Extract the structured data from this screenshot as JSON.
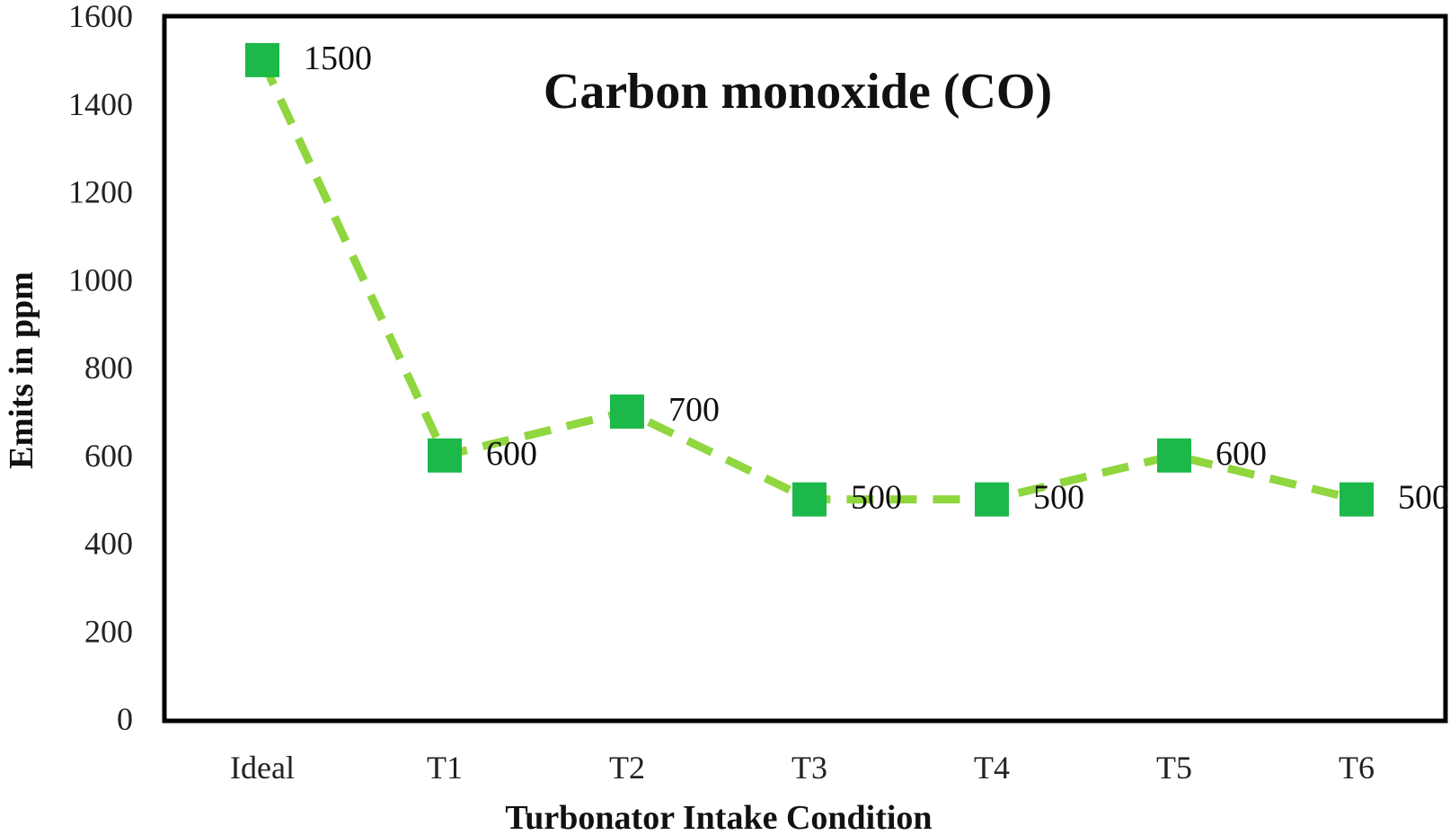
{
  "chart_data": {
    "type": "line",
    "title": "Carbon monoxide (CO)",
    "xlabel": "Turbonator  Intake  Condition",
    "ylabel": "Emits  in ppm",
    "categories": [
      "Ideal",
      "T1",
      "T2",
      "T3",
      "T4",
      "T5",
      "T6"
    ],
    "series": [
      {
        "values": [
          1500,
          600,
          700,
          500,
          500,
          600,
          500
        ],
        "data_labels": [
          "1500",
          "600",
          "700",
          "500",
          "500",
          "600",
          "500"
        ],
        "line_color": "#8fd63f",
        "line_style": "dashed",
        "marker": "square",
        "marker_color": "#1db84a"
      }
    ],
    "ylim": [
      0,
      1600
    ],
    "yticks": [
      "0",
      "200",
      "400",
      "600",
      "800",
      "1000",
      "1200",
      "1400",
      "1600"
    ],
    "grid": false,
    "legend": "none"
  }
}
